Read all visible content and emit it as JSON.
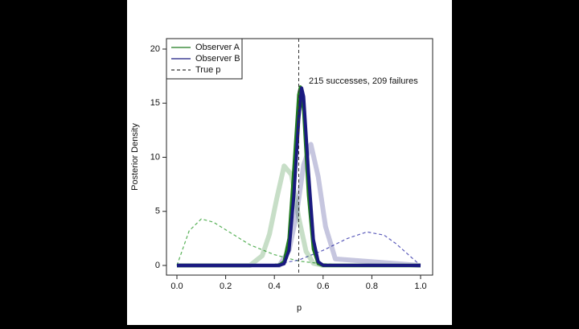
{
  "chart_data": {
    "type": "line",
    "xlabel": "p",
    "ylabel": "Posterior Density",
    "annotation": "215 successes, 209 failures",
    "xlim": [
      0,
      1
    ],
    "ylim": [
      0,
      20
    ],
    "xticks": [
      {
        "value": 0,
        "label": "0.0"
      },
      {
        "value": 0.2,
        "label": "0.2"
      },
      {
        "value": 0.4,
        "label": "0.4"
      },
      {
        "value": 0.6,
        "label": "0.6"
      },
      {
        "value": 0.8,
        "label": "0.8"
      },
      {
        "value": 1,
        "label": "1.0"
      }
    ],
    "yticks": [
      0,
      5,
      10,
      15,
      20
    ],
    "legend": "top-left",
    "reference_line": {
      "name": "True p",
      "x": 0.5,
      "color": "#333333",
      "dashed": true
    },
    "series": [
      {
        "color": "#2e9e2e",
        "dashed": true,
        "opacity": 0.8,
        "x": [
          0,
          0.05,
          0.1,
          0.15,
          0.2,
          0.3,
          0.4,
          0.5,
          0.6,
          0.7,
          0.8,
          1
        ],
        "values": [
          0,
          3.2,
          4.3,
          4.0,
          3.3,
          1.9,
          1.0,
          0.4,
          0.15,
          0.03,
          0,
          0
        ]
      },
      {
        "color": "#3333aa",
        "dashed": true,
        "opacity": 0.8,
        "x": [
          0,
          0.3,
          0.4,
          0.5,
          0.6,
          0.7,
          0.78,
          0.85,
          0.9,
          0.95,
          1
        ],
        "values": [
          0,
          0,
          0.1,
          0.5,
          1.4,
          2.5,
          3.1,
          2.8,
          2.0,
          1.0,
          0
        ]
      },
      {
        "color": "#1f7a1f",
        "opacity": 0.25,
        "x": [
          0,
          0.3,
          0.35,
          0.38,
          0.41,
          0.44,
          0.47,
          0.5,
          0.53,
          0.56,
          0.6,
          1
        ],
        "values": [
          0,
          0,
          0.9,
          2.9,
          6.2,
          9.2,
          8.4,
          4.4,
          1.3,
          0.2,
          0,
          0
        ]
      },
      {
        "color": "#1a1a80",
        "opacity": 0.25,
        "x": [
          0,
          0.42,
          0.46,
          0.49,
          0.52,
          0.55,
          0.58,
          0.61,
          0.65,
          1
        ],
        "values": [
          0,
          0,
          1.4,
          4.6,
          9.3,
          11.2,
          8.2,
          3.6,
          0.6,
          0
        ]
      },
      {
        "name": "Observer A",
        "color": "#1f7a1f",
        "x": [
          0,
          0.4,
          0.42,
          0.44,
          0.46,
          0.48,
          0.5,
          0.507,
          0.52,
          0.54,
          0.56,
          0.58,
          0.6,
          1
        ],
        "values": [
          0,
          0,
          0.03,
          0.36,
          2.5,
          8.9,
          15.8,
          16.5,
          14.3,
          6.5,
          1.5,
          0.17,
          0,
          0
        ]
      },
      {
        "name": "Observer B",
        "color": "#1a1a80",
        "x": [
          0,
          0.4,
          0.42,
          0.44,
          0.46,
          0.48,
          0.5,
          0.512,
          0.52,
          0.54,
          0.56,
          0.58,
          0.6,
          1
        ],
        "values": [
          0,
          0,
          0.01,
          0.16,
          1.4,
          6.4,
          13.5,
          16.4,
          15.6,
          8.6,
          2.4,
          0.34,
          0.02,
          0
        ]
      }
    ]
  }
}
